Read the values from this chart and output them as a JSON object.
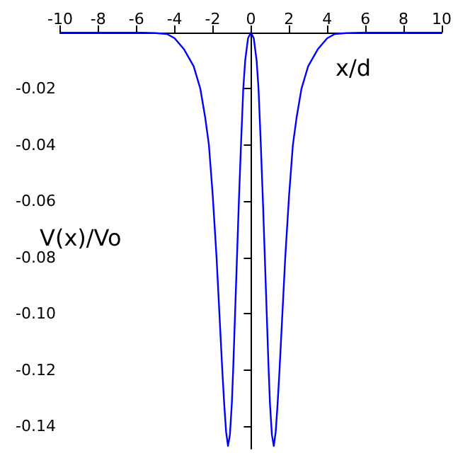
{
  "chart_data": {
    "type": "line",
    "xlabel": "x/d",
    "ylabel": "V(x)/Vo",
    "x": [
      -10,
      -6,
      -5,
      -4.4,
      -4,
      -3.5,
      -3,
      -2.65,
      -2.4,
      -2.2,
      -2,
      -1.8,
      -1.65,
      -1.5,
      -1.4,
      -1.3,
      -1.2,
      -1.1,
      -1,
      -0.93,
      -0.83,
      -0.73,
      -0.63,
      -0.52,
      -0.4,
      -0.3,
      -0.15,
      0,
      0.15,
      0.3,
      0.4,
      0.52,
      0.63,
      0.73,
      0.83,
      0.93,
      1,
      1.1,
      1.2,
      1.3,
      1.4,
      1.5,
      1.65,
      1.8,
      2,
      2.2,
      2.4,
      2.65,
      3,
      3.5,
      4,
      4.4,
      5,
      6,
      10
    ],
    "series": [
      {
        "color": "#0000ff",
        "values": [
          0,
          0,
          -0.0002,
          -0.0005,
          -0.002,
          -0.006,
          -0.012,
          -0.02,
          -0.03,
          -0.04,
          -0.058,
          -0.08,
          -0.1,
          -0.12,
          -0.132,
          -0.142,
          -0.147,
          -0.143,
          -0.132,
          -0.12,
          -0.1,
          -0.08,
          -0.06,
          -0.04,
          -0.02,
          -0.01,
          -0.002,
          0,
          -0.002,
          -0.01,
          -0.02,
          -0.04,
          -0.06,
          -0.08,
          -0.1,
          -0.12,
          -0.132,
          -0.143,
          -0.147,
          -0.142,
          -0.132,
          -0.12,
          -0.1,
          -0.08,
          -0.058,
          -0.04,
          -0.03,
          -0.02,
          -0.012,
          -0.006,
          -0.002,
          -0.0005,
          -0.0002,
          0,
          0
        ]
      }
    ],
    "xlim": [
      -10,
      10
    ],
    "xticks": [
      -10,
      -8,
      -6,
      -4,
      -2,
      0,
      2,
      4,
      6,
      8,
      10
    ],
    "ylim": [
      -0.148,
      0
    ],
    "yticks": [
      -0.02,
      -0.04,
      -0.06,
      -0.08,
      {
        "value": -0.1,
        "label": "-0.10"
      },
      -0.12,
      -0.14
    ],
    "marker": "none",
    "line_style": "solid"
  }
}
